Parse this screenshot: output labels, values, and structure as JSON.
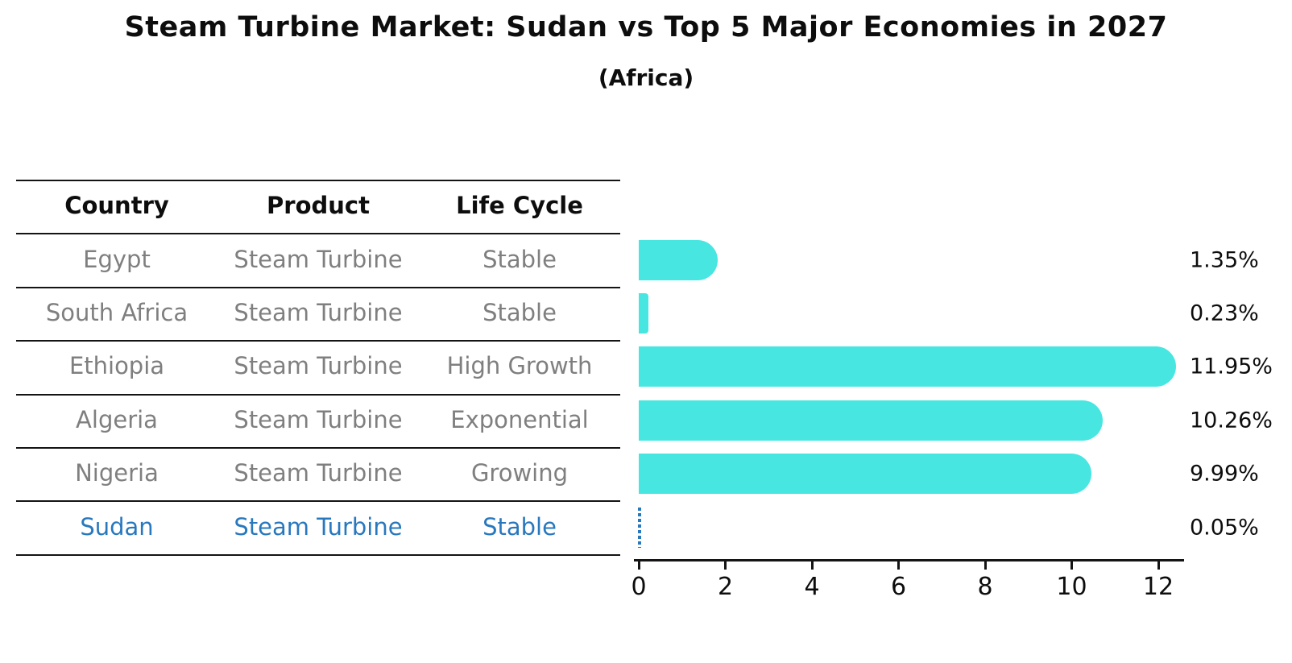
{
  "title": "Steam Turbine Market: Sudan vs Top 5 Major Economies in 2027",
  "subtitle": "(Africa)",
  "table": {
    "headers": [
      "Country",
      "Product",
      "Life Cycle"
    ],
    "rows": [
      {
        "country": "Egypt",
        "product": "Steam Turbine",
        "life_cycle": "Stable",
        "highlight": false
      },
      {
        "country": "South Africa",
        "product": "Steam Turbine",
        "life_cycle": "Stable",
        "highlight": false
      },
      {
        "country": "Ethiopia",
        "product": "Steam Turbine",
        "life_cycle": "High Growth",
        "highlight": false
      },
      {
        "country": "Algeria",
        "product": "Steam Turbine",
        "life_cycle": "Exponential",
        "highlight": false
      },
      {
        "country": "Nigeria",
        "product": "Steam Turbine",
        "life_cycle": "Growing",
        "highlight": true
      }
    ],
    "highlight_row": {
      "country": "Sudan",
      "product": "Steam Turbine",
      "life_cycle": "Stable"
    }
  },
  "chart_data": {
    "type": "bar",
    "orientation": "horizontal",
    "title": "Steam Turbine Market: Sudan vs Top 5 Major Economies in 2027",
    "subtitle": "(Africa)",
    "categories": [
      "Egypt",
      "South Africa",
      "Ethiopia",
      "Algeria",
      "Nigeria",
      "Sudan"
    ],
    "values": [
      1.35,
      0.23,
      11.95,
      10.26,
      9.99,
      0.05
    ],
    "value_labels": [
      "1.35%",
      "0.23%",
      "11.95%",
      "10.26%",
      "9.99%",
      "0.05%"
    ],
    "xlabel": "",
    "ylabel": "",
    "xticks": [
      0,
      2,
      4,
      6,
      8,
      10,
      12
    ],
    "xlim": [
      0,
      12.6
    ],
    "grid": false,
    "legend": false,
    "bar_color": "#48e6e1",
    "highlight_color": "#2878be",
    "highlight_index": 5,
    "highlight_style": "dashed-outline"
  },
  "colors": {
    "background": "#ffffff",
    "text": "#0d0d0d",
    "muted_text": "#7f7f7f",
    "line": "#141414",
    "bar": "#48e6e1",
    "highlight": "#2878be"
  }
}
